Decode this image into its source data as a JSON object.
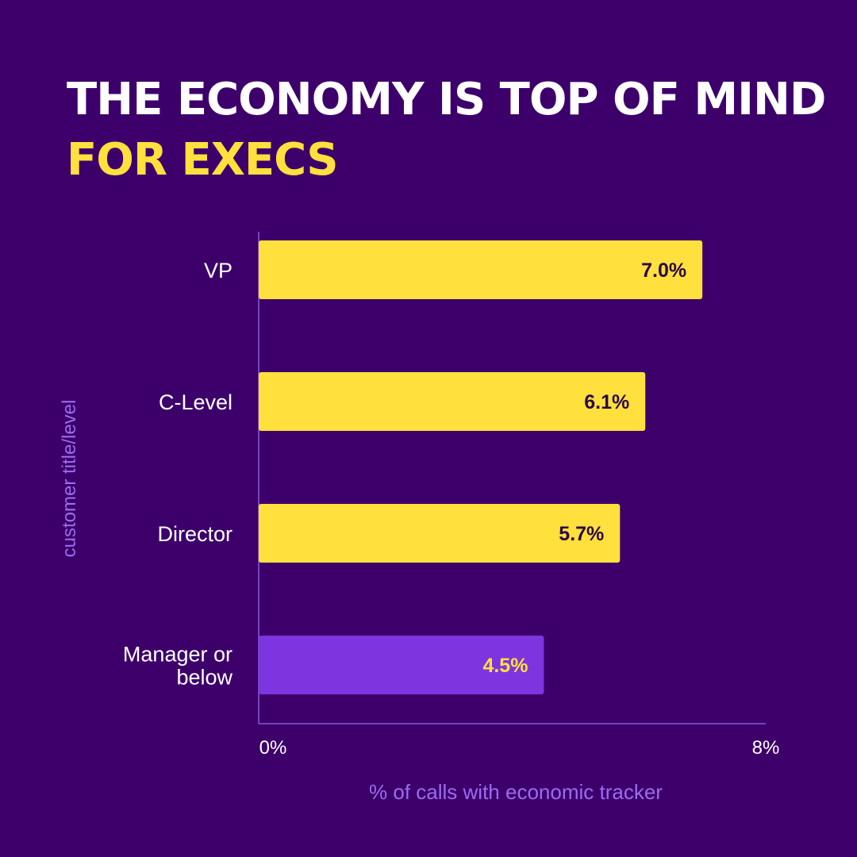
{
  "header": {
    "title_line1": "THE ECONOMY IS TOP OF MIND",
    "title_line2": "FOR EXECS"
  },
  "colors": {
    "background": "#3d006b",
    "highlight": "#ffe03d",
    "accent_purple": "#7d35e0",
    "axis_label": "#9b6cf0",
    "axis_line": "#8a5bd6",
    "dark_text": "#2b0845",
    "white": "#ffffff"
  },
  "chart_data": {
    "type": "bar",
    "orientation": "horizontal",
    "categories": [
      "VP",
      "C-Level",
      "Director",
      "Manager or below"
    ],
    "values": [
      7.0,
      6.1,
      5.7,
      4.5
    ],
    "value_labels": [
      "7.0%",
      "6.1%",
      "5.7%",
      "4.5%"
    ],
    "bar_colors": [
      "#ffe03d",
      "#ffe03d",
      "#ffe03d",
      "#7d35e0"
    ],
    "value_label_colors": [
      "#2b0845",
      "#2b0845",
      "#2b0845",
      "#ffe03d"
    ],
    "title": "THE ECONOMY IS TOP OF MIND FOR EXECS",
    "xlabel": "% of calls with economic tracker",
    "ylabel": "customer title/level",
    "xlim": [
      0,
      8
    ],
    "xtick_labels": [
      "0%",
      "8%"
    ],
    "xticks": [
      0,
      8
    ],
    "grid": false
  }
}
